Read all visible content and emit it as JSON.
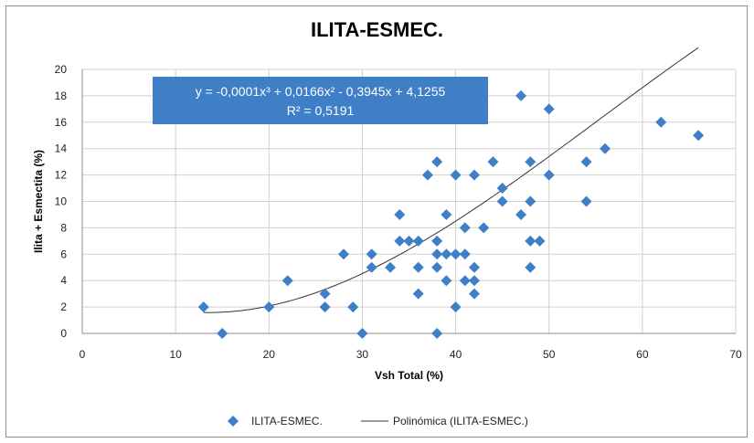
{
  "chart_data": {
    "type": "scatter",
    "title": "ILITA-ESMEC.",
    "xlabel": "Vsh Total (%)",
    "ylabel": "Ilita + Esmectita (%)",
    "xlim": [
      0,
      70
    ],
    "ylim": [
      0,
      20
    ],
    "x_ticks": [
      "0",
      "10",
      "20",
      "30",
      "40",
      "50",
      "60",
      "70"
    ],
    "y_ticks": [
      "0",
      "2",
      "4",
      "6",
      "8",
      "10",
      "12",
      "14",
      "16",
      "18",
      "20"
    ],
    "grid": "horizontal and vertical major gridlines",
    "series": [
      {
        "name": "ILITA-ESMEC.",
        "marker": "diamond",
        "color": "#3f7fc7",
        "points": [
          [
            13,
            2
          ],
          [
            15,
            0
          ],
          [
            20,
            2
          ],
          [
            22,
            4
          ],
          [
            26,
            3
          ],
          [
            26,
            2
          ],
          [
            28,
            6
          ],
          [
            29,
            2
          ],
          [
            30,
            0
          ],
          [
            31,
            6
          ],
          [
            31,
            5
          ],
          [
            33,
            5
          ],
          [
            34,
            9
          ],
          [
            34,
            7
          ],
          [
            35,
            7
          ],
          [
            36,
            7
          ],
          [
            36,
            5
          ],
          [
            36,
            3
          ],
          [
            37,
            12
          ],
          [
            38,
            13
          ],
          [
            38,
            7
          ],
          [
            38,
            6
          ],
          [
            38,
            5
          ],
          [
            38,
            0
          ],
          [
            39,
            9
          ],
          [
            39,
            6
          ],
          [
            39,
            4
          ],
          [
            40,
            12
          ],
          [
            40,
            6
          ],
          [
            40,
            2
          ],
          [
            41,
            8
          ],
          [
            41,
            6
          ],
          [
            41,
            4
          ],
          [
            42,
            12
          ],
          [
            42,
            5
          ],
          [
            42,
            4
          ],
          [
            42,
            3
          ],
          [
            43,
            8
          ],
          [
            44,
            13
          ],
          [
            45,
            11
          ],
          [
            45,
            10
          ],
          [
            47,
            18
          ],
          [
            47,
            9
          ],
          [
            48,
            13
          ],
          [
            48,
            10
          ],
          [
            48,
            7
          ],
          [
            48,
            5
          ],
          [
            49,
            7
          ],
          [
            50,
            17
          ],
          [
            50,
            12
          ],
          [
            54,
            13
          ],
          [
            54,
            10
          ],
          [
            56,
            14
          ],
          [
            62,
            16
          ],
          [
            66,
            15
          ]
        ]
      }
    ],
    "trendline": {
      "name": "Polinómica (ILITA-ESMEC.)",
      "color": "#333333",
      "coefficients": [
        -0.0001,
        0.0166,
        -0.3945,
        4.1255
      ],
      "x_range": [
        13,
        66
      ]
    },
    "equation_label": {
      "line1": "y = -0,0001x³ + 0,0166x² - 0,3945x + 4,1255",
      "line2": "R² = 0,5191",
      "background": "#3f7fc7"
    },
    "legend": {
      "placement": "bottom",
      "items": [
        "ILITA-ESMEC.",
        "Polinómica (ILITA-ESMEC.)"
      ]
    }
  }
}
